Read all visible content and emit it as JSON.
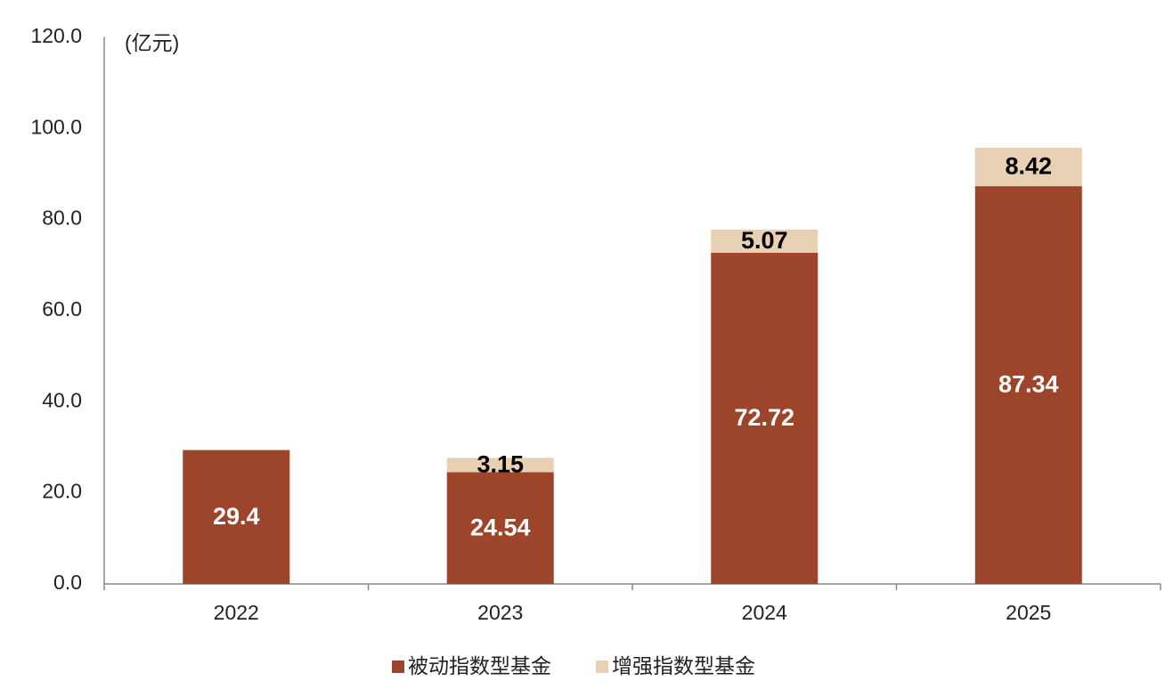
{
  "chart_data": {
    "type": "stacked_bar",
    "y_unit": "(亿元)",
    "categories": [
      "2022",
      "2023",
      "2024",
      "2025"
    ],
    "series": [
      {
        "name": "被动指数型基金",
        "color": "#9c452b",
        "values": [
          29.4,
          24.54,
          72.72,
          87.34
        ]
      },
      {
        "name": "增强指数型基金",
        "color": "#e8d0b2",
        "values": [
          null,
          3.15,
          5.07,
          8.42
        ]
      }
    ],
    "ylim": [
      0,
      120
    ],
    "yticks": [
      {
        "value": 0,
        "label": "0.0"
      },
      {
        "value": 20,
        "label": "20.0"
      },
      {
        "value": 40,
        "label": "40.0"
      },
      {
        "value": 60,
        "label": "60.0"
      },
      {
        "value": 80,
        "label": "80.0"
      },
      {
        "value": 100,
        "label": "100.0"
      },
      {
        "value": 120,
        "label": "120.0"
      }
    ]
  }
}
